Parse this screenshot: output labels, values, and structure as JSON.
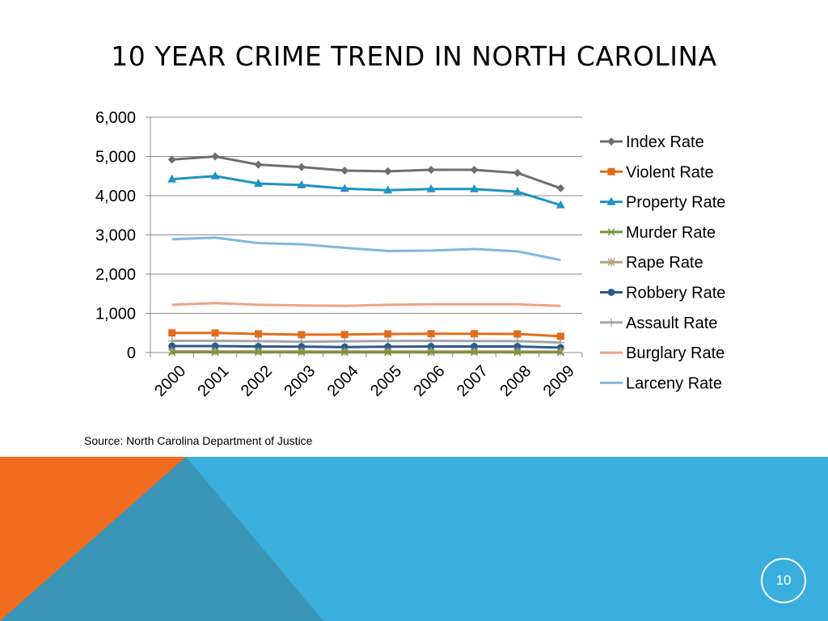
{
  "slide": {
    "title": "10 YEAR CRIME TREND IN NORTH CAROLINA",
    "source": "Source: North Carolina Department of Justice",
    "page_number": "10"
  },
  "colors": {
    "footer_blue": "#3aafde",
    "footer_orange": "#f26c1f",
    "footer_teal": "#3a95b6"
  },
  "chart_data": {
    "type": "line",
    "title": "",
    "xlabel": "",
    "ylabel": "",
    "x": [
      "2000",
      "2001",
      "2002",
      "2003",
      "2004",
      "2005",
      "2006",
      "2007",
      "2008",
      "2009"
    ],
    "ylim": [
      0,
      6000
    ],
    "yticks": [
      0,
      1000,
      2000,
      3000,
      4000,
      5000,
      6000
    ],
    "ytick_labels": [
      "0",
      "1,000",
      "2,000",
      "3,000",
      "4,000",
      "5,000",
      "6,000"
    ],
    "grid": true,
    "legend_position": "right",
    "series": [
      {
        "name": "Index Rate",
        "color": "#6d6e71",
        "marker": "diamond",
        "values": [
          4920,
          5000,
          4790,
          4730,
          4640,
          4620,
          4660,
          4660,
          4580,
          4190
        ]
      },
      {
        "name": "Violent Rate",
        "color": "#e36c1b",
        "marker": "square",
        "values": [
          500,
          500,
          475,
          455,
          460,
          475,
          480,
          480,
          475,
          415
        ]
      },
      {
        "name": "Property Rate",
        "color": "#1f93c4",
        "marker": "triangle",
        "values": [
          4420,
          4500,
          4310,
          4270,
          4180,
          4140,
          4170,
          4170,
          4100,
          3760
        ]
      },
      {
        "name": "Murder Rate",
        "color": "#77933c",
        "marker": "x",
        "values": [
          7,
          7,
          6,
          6,
          6,
          6,
          6,
          6,
          6,
          5
        ]
      },
      {
        "name": "Rape Rate",
        "color": "#b5a27a",
        "marker": "star",
        "values": [
          30,
          30,
          28,
          28,
          28,
          28,
          28,
          28,
          27,
          25
        ]
      },
      {
        "name": "Robbery Rate",
        "color": "#2c5a8a",
        "marker": "circle",
        "values": [
          165,
          165,
          155,
          150,
          140,
          150,
          155,
          155,
          155,
          125
        ]
      },
      {
        "name": "Assault Rate",
        "color": "#a5a5a5",
        "marker": "plus",
        "values": [
          300,
          300,
          290,
          275,
          285,
          295,
          300,
          295,
          290,
          255
        ]
      },
      {
        "name": "Burglary Rate",
        "color": "#f4a088",
        "marker": "none",
        "values": [
          1220,
          1260,
          1220,
          1200,
          1190,
          1220,
          1230,
          1230,
          1230,
          1190
        ]
      },
      {
        "name": "Larceny Rate",
        "color": "#7fb8dd",
        "marker": "none",
        "values": [
          2890,
          2930,
          2790,
          2760,
          2670,
          2590,
          2600,
          2640,
          2580,
          2360
        ]
      }
    ]
  }
}
